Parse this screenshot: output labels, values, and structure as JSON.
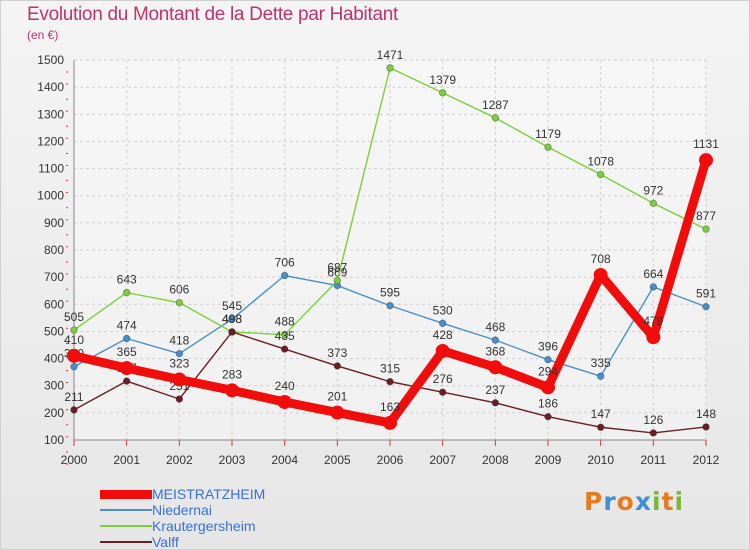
{
  "title": "Evolution du Montant de la Dette par Habitant",
  "unit": "(en €)",
  "logo": {
    "letters": [
      "P",
      "r",
      "o",
      "x",
      "i",
      "t",
      "i"
    ],
    "colors": [
      "#e87a1e",
      "#3d8fd6",
      "#e87a1e",
      "#3d8fd6",
      "#7cb637",
      "#e87a1e",
      "#7cb637"
    ]
  },
  "chart_data": {
    "type": "line",
    "x": [
      "2000",
      "2001",
      "2002",
      "2003",
      "2004",
      "2005",
      "2006",
      "2007",
      "2008",
      "2009",
      "2010",
      "2011",
      "2012"
    ],
    "ylim": [
      100,
      1500
    ],
    "yticks": [
      "100",
      "200",
      "300",
      "400",
      "500",
      "600",
      "700",
      "800",
      "900",
      "1000",
      "1100",
      "1200",
      "1300",
      "1400",
      "1500"
    ],
    "grid": true,
    "legend_position": "bottom-left",
    "series": [
      {
        "name": "Niedernai",
        "color": "#4a90c8",
        "values": [
          370,
          474,
          418,
          545,
          706,
          669,
          595,
          530,
          468,
          396,
          335,
          664,
          591
        ],
        "labels": [
          "370",
          "474",
          "418",
          "545",
          "706",
          "669",
          "595",
          "530",
          "468",
          "396",
          "335",
          "664",
          "591"
        ]
      },
      {
        "name": "Krautergersheim",
        "color": "#7ccf3a",
        "values": [
          505,
          643,
          606,
          498,
          488,
          687,
          1471,
          1379,
          1287,
          1179,
          1078,
          972,
          877
        ],
        "labels": [
          "505",
          "643",
          "606",
          "498",
          "488",
          "687",
          "1471",
          "1379",
          "1287",
          "1179",
          "1078",
          "972",
          "877"
        ]
      },
      {
        "name": "Valff",
        "color": "#6b1f24",
        "values": [
          211,
          317,
          251,
          498,
          435,
          373,
          315,
          276,
          237,
          186,
          147,
          126,
          148
        ],
        "labels": [
          "211",
          "317",
          "251",
          "498",
          "435",
          "373",
          "315",
          "276",
          "237",
          "186",
          "147",
          "126",
          "148"
        ]
      },
      {
        "name": "MEISTRATZHEIM",
        "color": "#f20d0d",
        "values": [
          410,
          365,
          323,
          283,
          240,
          201,
          163,
          428,
          368,
          294,
          708,
          479,
          1131
        ],
        "labels": [
          "410",
          "365",
          "323",
          "283",
          "240",
          "201",
          "163",
          "428",
          "368",
          "294",
          "708",
          "479",
          "1131"
        ]
      }
    ],
    "legend_order": [
      "MEISTRATZHEIM",
      "Niedernai",
      "Krautergersheim",
      "Valff"
    ]
  }
}
